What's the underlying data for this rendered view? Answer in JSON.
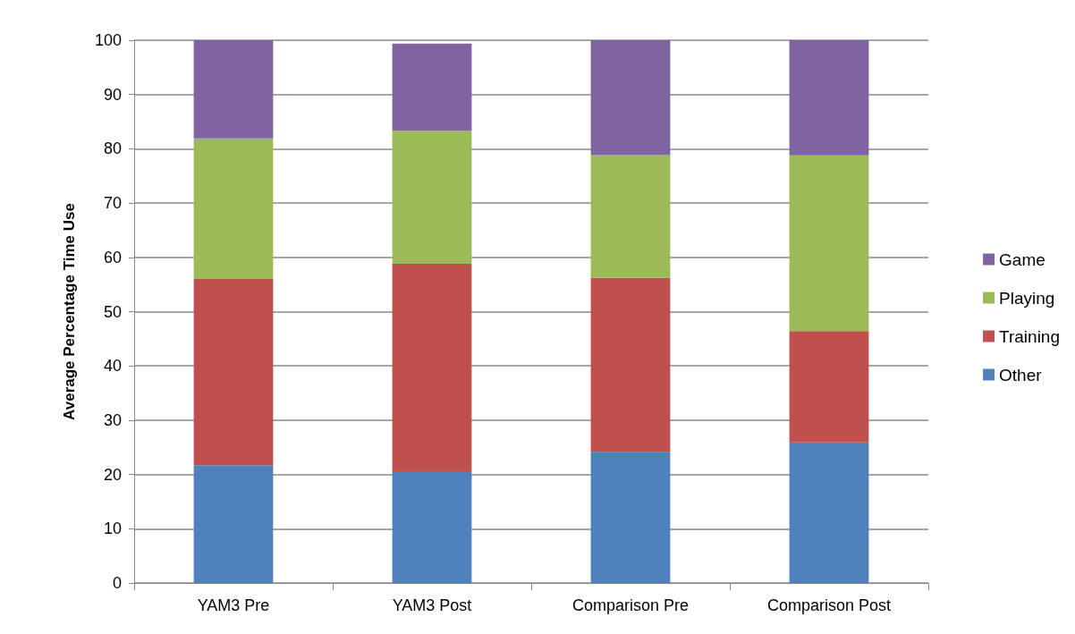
{
  "chart_data": {
    "type": "bar",
    "stacked": true,
    "ylabel": "Average Percentage Time Use",
    "categories": [
      "YAM3 Pre",
      "YAM3 Post",
      "Comparison Pre",
      "Comparison Post"
    ],
    "series": [
      {
        "name": "Other",
        "color": "#4f81bd",
        "values": [
          21.7,
          20.6,
          24.1,
          25.9
        ]
      },
      {
        "name": "Training",
        "color": "#c0504d",
        "values": [
          34.3,
          38.2,
          32.1,
          20.5
        ]
      },
      {
        "name": "Playing",
        "color": "#9bbb59",
        "values": [
          25.9,
          24.5,
          22.7,
          32.4
        ]
      },
      {
        "name": "Game",
        "color": "#8064a2",
        "values": [
          18.1,
          16.1,
          21.1,
          21.2
        ]
      }
    ],
    "ylim": [
      0,
      100
    ],
    "yticks": [
      0,
      10,
      20,
      30,
      40,
      50,
      60,
      70,
      80,
      90,
      100
    ],
    "grid": "y",
    "legend": "right"
  }
}
